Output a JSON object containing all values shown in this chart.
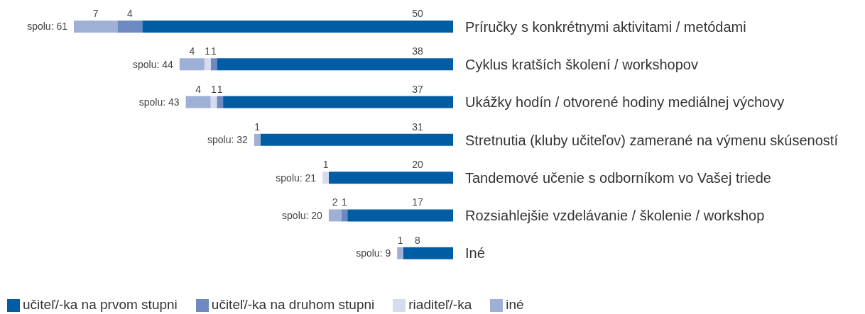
{
  "chart_data": {
    "type": "bar",
    "orientation": "horizontal",
    "stacked": true,
    "categories": [
      "Príručky s konkrétnymi aktivitami / metódami",
      "Cyklus kratších školení / workshopov",
      "Ukážky hodín / otvorené hodiny mediálnej výchovy",
      "Stretnutia (kluby učiteľov) zamerané na výmenu skúseností",
      "Tandemové učenie s odborníkom vo Vašej triede",
      "Rozsiahlejšie vzdelávanie / školenie / workshop",
      "Iné"
    ],
    "series": [
      {
        "name": "učiteľ/-ka na prvom stupni",
        "color": "#005ca3",
        "values": [
          50,
          38,
          37,
          31,
          20,
          17,
          8
        ]
      },
      {
        "name": "učiteľ/-ka na druhom stupni",
        "color": "#6d89c1",
        "values": [
          4,
          1,
          1,
          null,
          null,
          1,
          null
        ]
      },
      {
        "name": "riaditeľ/-ka",
        "color": "#d6dcee",
        "values": [
          null,
          1,
          1,
          null,
          1,
          null,
          null
        ]
      },
      {
        "name": "iné",
        "color": "#9fb0d6",
        "values": [
          7,
          4,
          4,
          1,
          null,
          2,
          1
        ]
      }
    ],
    "xlim": [
      61,
      0
    ],
    "tick_labels": "y",
    "data_labels": true,
    "totals": [
      "spolu: 61",
      "spolu: 44",
      "spolu: 43",
      "spolu: 32",
      "spolu: 21",
      "spolu: 20",
      "spolu: 9"
    ],
    "legend": "bottom left"
  }
}
